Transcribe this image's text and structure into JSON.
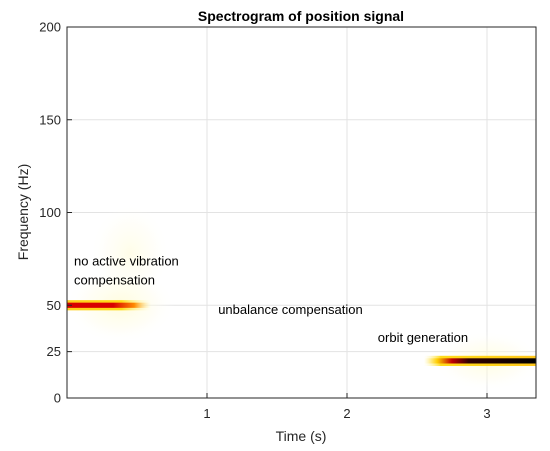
{
  "chart_data": {
    "type": "heatmap",
    "title": "Spectrogram of position signal",
    "xlabel": "Time (s)",
    "ylabel": "Frequency (Hz)",
    "xlim": [
      0,
      3.35
    ],
    "ylim": [
      0,
      200
    ],
    "xticks": [
      1,
      2,
      3
    ],
    "yticks": [
      0,
      25,
      50,
      100,
      150,
      200
    ],
    "grid": true,
    "colormap": [
      "#ffffff",
      "#fff8a0",
      "#ffd000",
      "#e06000",
      "#b00000",
      "#000000"
    ],
    "bands": [
      {
        "t_start": 0.0,
        "t_end": 0.6,
        "frequency": 50,
        "peak": 1.0
      },
      {
        "t_start": 2.55,
        "t_end": 3.35,
        "frequency": 20,
        "peak": 1.0
      }
    ],
    "annotations": [
      {
        "text": "no active vibration",
        "x": 0.05,
        "y": 74
      },
      {
        "text": "compensation",
        "x": 0.05,
        "y": 64
      },
      {
        "text": "unbalance compensation",
        "x": 1.08,
        "y": 48
      },
      {
        "text": "orbit generation",
        "x": 2.22,
        "y": 33
      }
    ]
  }
}
